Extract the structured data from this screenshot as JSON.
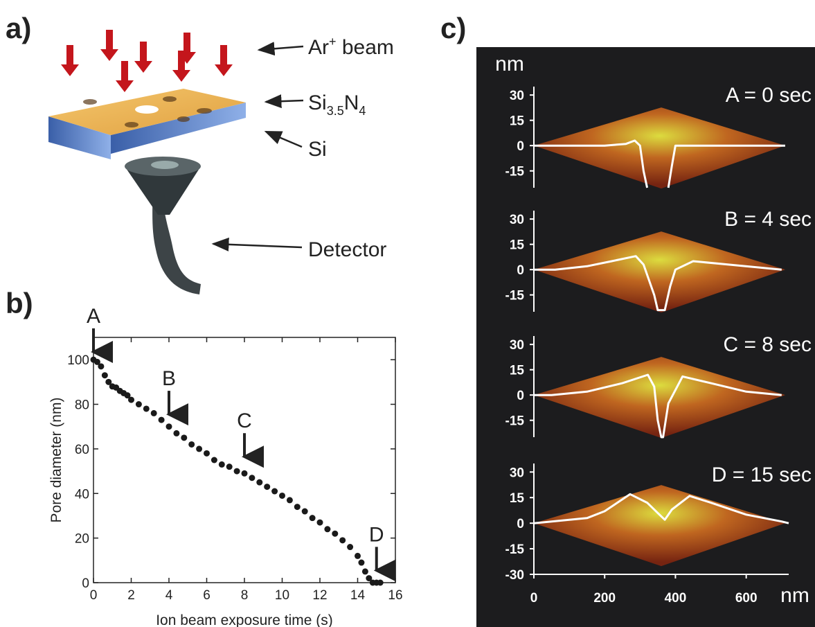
{
  "panel_labels": [
    "a)",
    "b)",
    "c)"
  ],
  "diagram": {
    "labels": {
      "beam": {
        "text": "Ar",
        "sup": "+",
        "rest": " beam"
      },
      "membrane": {
        "text": "Si",
        "sub": "3.5",
        "text2": "N",
        "sub2": "4"
      },
      "substrate": "Si",
      "detector": "Detector"
    }
  },
  "chart_data": [
    {
      "type": "scatter",
      "color": "#1a1a1a",
      "x": [
        0,
        0.2,
        0.4,
        0.6,
        0.8,
        1.0,
        1.2,
        1.4,
        1.6,
        1.8,
        2.0,
        2.4,
        2.8,
        3.2,
        3.6,
        4.0,
        4.4,
        4.8,
        5.2,
        5.6,
        6.0,
        6.4,
        6.8,
        7.2,
        7.6,
        8.0,
        8.4,
        8.8,
        9.2,
        9.6,
        10.0,
        10.4,
        10.8,
        11.2,
        11.6,
        12.0,
        12.4,
        12.8,
        13.2,
        13.6,
        14.0,
        14.2,
        14.4,
        14.6,
        14.8,
        15.0,
        15.2
      ],
      "values": [
        100,
        99,
        97,
        93,
        90,
        88,
        87.5,
        86,
        85,
        84,
        82,
        80,
        78,
        76,
        73,
        70,
        67,
        65,
        62,
        60,
        58,
        55,
        53,
        52,
        50,
        49,
        47,
        45,
        43,
        41,
        39,
        37,
        34,
        32,
        29,
        27,
        24,
        22,
        19,
        16,
        12,
        9,
        5,
        2,
        0,
        0,
        0
      ],
      "xlim": [
        0,
        16
      ],
      "xticks": [
        0,
        2,
        4,
        6,
        8,
        10,
        12,
        14,
        16
      ],
      "ylim": [
        0,
        110
      ],
      "yticks": [
        0,
        20,
        40,
        60,
        80,
        100
      ],
      "xlabel": "Ion beam exposure time (s)",
      "ylabel": "Pore diameter (nm)",
      "annotations": [
        {
          "text": "A",
          "x": 0,
          "y": 101
        },
        {
          "text": "B",
          "x": 4,
          "y": 73
        },
        {
          "text": "C",
          "x": 8,
          "y": 54
        },
        {
          "text": "D",
          "x": 15,
          "y": 3
        }
      ]
    },
    {
      "type": "line",
      "title": "A = 0 sec",
      "ylabel": "nm",
      "color": "#ffffff",
      "x": [
        0,
        100,
        200,
        260,
        285,
        300,
        310,
        320,
        350,
        380,
        390,
        400,
        500,
        600,
        700,
        710
      ],
      "values": [
        0,
        0,
        0,
        1,
        3,
        0,
        -15,
        -25,
        null,
        -25,
        -12,
        0,
        0,
        0,
        0,
        0
      ],
      "xlim": [
        0,
        720
      ],
      "ylim": [
        -25,
        35
      ],
      "yticks": [
        -15,
        0,
        15,
        30
      ]
    },
    {
      "type": "line",
      "title": "B = 4 sec",
      "color": "#ffffff",
      "x": [
        0,
        60,
        150,
        220,
        288,
        310,
        340,
        350,
        370,
        385,
        400,
        450,
        550,
        650,
        700
      ],
      "values": [
        0,
        0,
        2,
        5,
        8,
        3,
        -15,
        -24,
        -24,
        -10,
        0,
        5,
        3,
        1,
        0
      ],
      "xlim": [
        0,
        720
      ],
      "ylim": [
        -25,
        35
      ],
      "yticks": [
        -15,
        0,
        15,
        30
      ]
    },
    {
      "type": "line",
      "title": "C = 8 sec",
      "color": "#ffffff",
      "x": [
        0,
        50,
        150,
        250,
        322,
        340,
        350,
        360,
        365,
        380,
        420,
        500,
        600,
        700
      ],
      "values": [
        0,
        0,
        2,
        7,
        12,
        5,
        -15,
        -25,
        -25,
        -5,
        11,
        7,
        2,
        0
      ],
      "xlim": [
        0,
        720
      ],
      "ylim": [
        -25,
        35
      ],
      "yticks": [
        -15,
        0,
        15,
        30
      ]
    },
    {
      "type": "line",
      "title": "D = 15 sec",
      "xlabel": "nm",
      "color": "#ffffff",
      "x": [
        0,
        50,
        150,
        200,
        272,
        320,
        350,
        370,
        390,
        440,
        500,
        600,
        700,
        720
      ],
      "values": [
        0,
        1,
        3,
        7,
        17,
        12,
        6,
        2,
        8,
        16,
        12,
        5,
        1,
        0
      ],
      "xlim": [
        0,
        720
      ],
      "xticks": [
        0,
        200,
        400,
        600
      ],
      "ylim": [
        -30,
        35
      ],
      "yticks": [
        -30,
        -15,
        0,
        15,
        30
      ]
    }
  ]
}
